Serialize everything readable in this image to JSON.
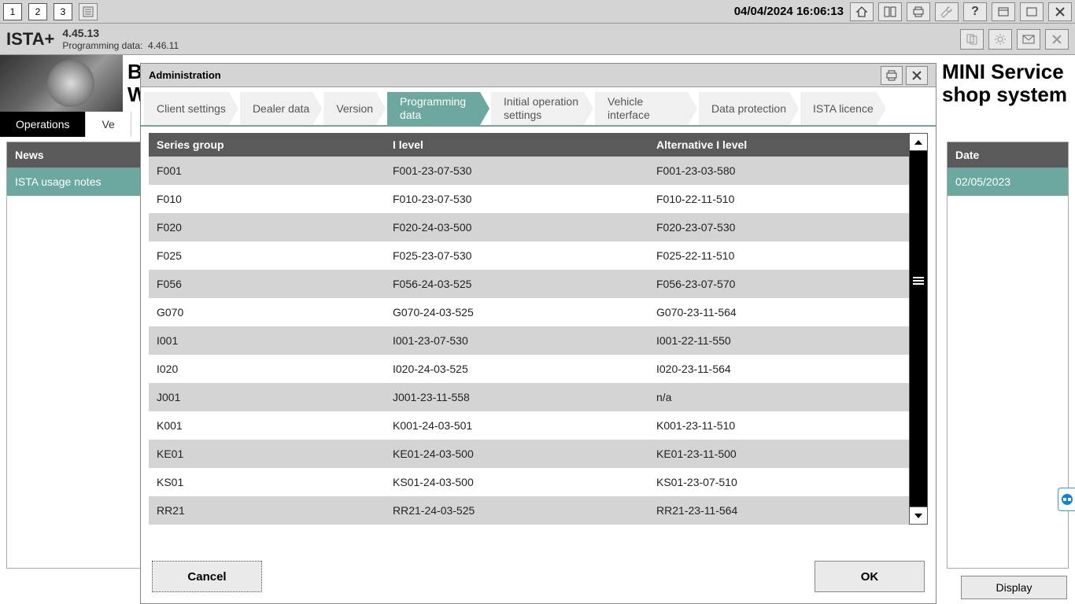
{
  "topbar": {
    "nums": [
      "1",
      "2",
      "3"
    ],
    "datetime": "04/04/2024 16:06:13"
  },
  "app": {
    "title": "ISTA+",
    "version": "4.45.13",
    "prog_label": "Programming data:",
    "prog_value": "4.46.11"
  },
  "banner": {
    "left_line1": "BMW Service",
    "left_line2": "W",
    "right_line1": "MINI Service",
    "right_line2": "shop system"
  },
  "main_tabs": {
    "active": "Operations",
    "second": "Ve"
  },
  "news": {
    "header": "News",
    "item": "ISTA usage notes"
  },
  "date_panel": {
    "header": "Date",
    "item": "02/05/2023"
  },
  "display_btn": "Display",
  "modal": {
    "title": "Administration",
    "tabs": [
      "Client settings",
      "Dealer data",
      "Version",
      "Programming data",
      "Initial operation settings",
      "Vehicle interface",
      "Data protection",
      "ISTA licence"
    ],
    "active_tab_index": 3,
    "columns": [
      "Series group",
      "I level",
      "Alternative I level"
    ],
    "rows": [
      [
        "F001",
        "F001-23-07-530",
        "F001-23-03-580"
      ],
      [
        "F010",
        "F010-23-07-530",
        "F010-22-11-510"
      ],
      [
        "F020",
        "F020-24-03-500",
        "F020-23-07-530"
      ],
      [
        "F025",
        "F025-23-07-530",
        "F025-22-11-510"
      ],
      [
        "F056",
        "F056-24-03-525",
        "F056-23-07-570"
      ],
      [
        "G070",
        "G070-24-03-525",
        "G070-23-11-564"
      ],
      [
        "I001",
        "I001-23-07-530",
        "I001-22-11-550"
      ],
      [
        "I020",
        "I020-24-03-525",
        "I020-23-11-564"
      ],
      [
        "J001",
        "J001-23-11-558",
        "n/a"
      ],
      [
        "K001",
        "K001-24-03-501",
        "K001-23-11-510"
      ],
      [
        "KE01",
        "KE01-24-03-500",
        "KE01-23-11-500"
      ],
      [
        "KS01",
        "KS01-24-03-500",
        "KS01-23-07-510"
      ],
      [
        "RR21",
        "RR21-24-03-525",
        "RR21-23-11-564"
      ]
    ],
    "cancel": "Cancel",
    "ok": "OK"
  },
  "colors": {
    "toolbar_bg": "#d4d4d4",
    "accent": "#6ca7a0",
    "header_dark": "#5a5a5a",
    "row_alt": "#d4d4d4"
  }
}
